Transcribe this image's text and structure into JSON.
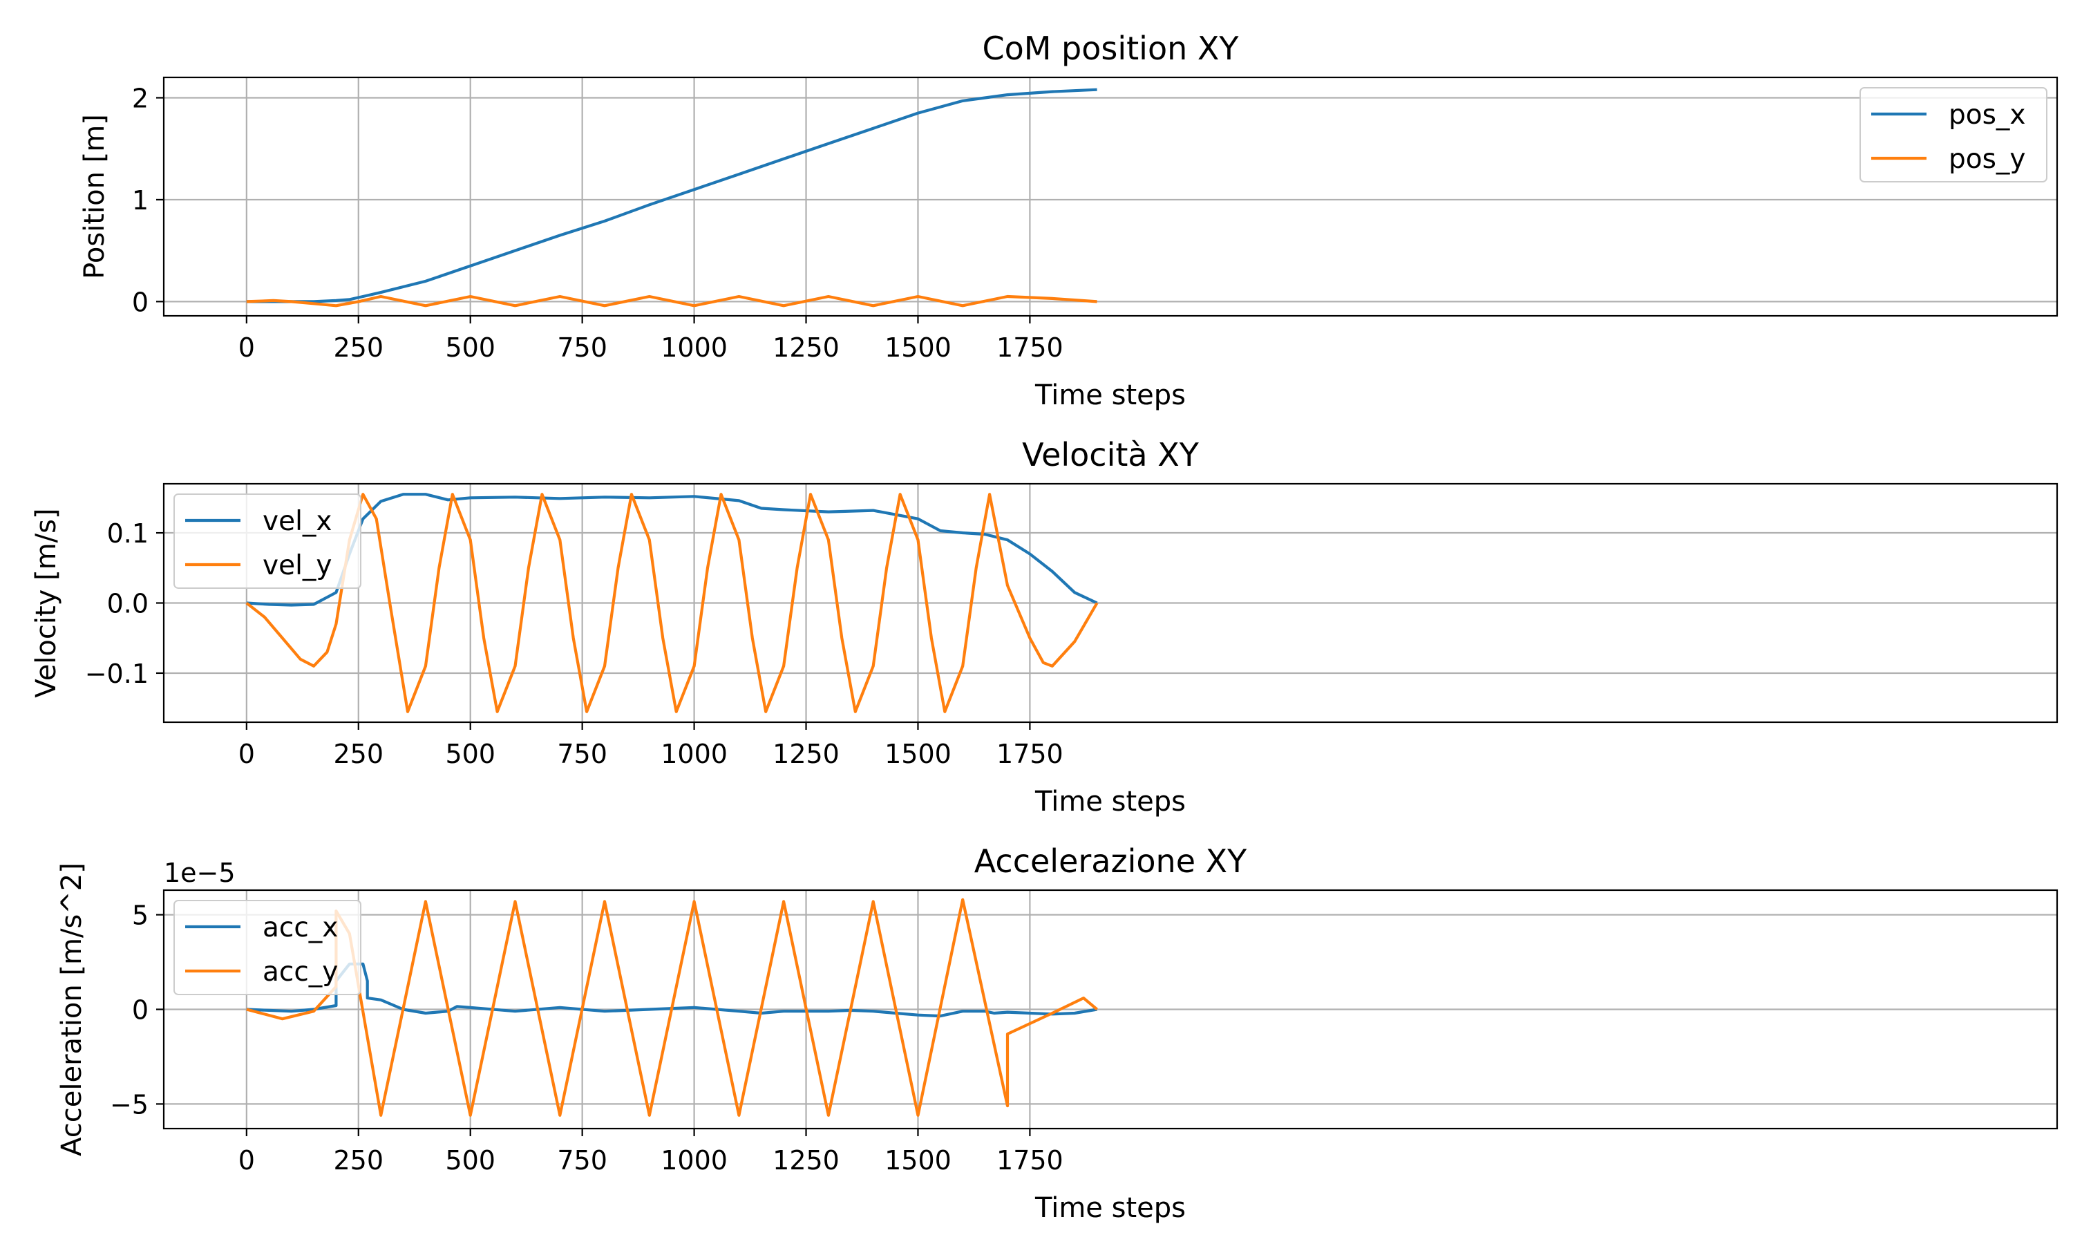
{
  "chart_data": [
    {
      "type": "line",
      "title": "CoM position XY",
      "xlabel": "Time steps",
      "ylabel": "Position [m]",
      "offset_text": "",
      "xlim": [
        -185,
        4045
      ],
      "ylim": [
        -0.14,
        2.2
      ],
      "xticks": [
        0,
        250,
        500,
        750,
        1000,
        1250,
        1500,
        1750
      ],
      "yticks": [
        0,
        1,
        2
      ],
      "ytick_labels": [
        "0",
        "1",
        "2"
      ],
      "grid": true,
      "legend_position": "top-right",
      "series": [
        {
          "name": "pos_x",
          "color": "#1f77b4",
          "points": [
            [
              0,
              0
            ],
            [
              100,
              0
            ],
            [
              150,
              0
            ],
            [
              200,
              0.01
            ],
            [
              230,
              0.02
            ],
            [
              260,
              0.05
            ],
            [
              300,
              0.09
            ],
            [
              400,
              0.2
            ],
            [
              500,
              0.35
            ],
            [
              600,
              0.5
            ],
            [
              700,
              0.65
            ],
            [
              800,
              0.79
            ],
            [
              900,
              0.95
            ],
            [
              1000,
              1.1
            ],
            [
              1100,
              1.25
            ],
            [
              1200,
              1.4
            ],
            [
              1300,
              1.55
            ],
            [
              1400,
              1.7
            ],
            [
              1500,
              1.85
            ],
            [
              1600,
              1.97
            ],
            [
              1650,
              2.0
            ],
            [
              1700,
              2.03
            ],
            [
              1800,
              2.06
            ],
            [
              1900,
              2.08
            ]
          ]
        },
        {
          "name": "pos_y",
          "color": "#ff7f0e",
          "points": [
            [
              0,
              0
            ],
            [
              60,
              0.01
            ],
            [
              100,
              0
            ],
            [
              150,
              -0.02
            ],
            [
              200,
              -0.04
            ],
            [
              250,
              0
            ],
            [
              300,
              0.05
            ],
            [
              400,
              -0.04
            ],
            [
              500,
              0.05
            ],
            [
              600,
              -0.04
            ],
            [
              700,
              0.05
            ],
            [
              800,
              -0.04
            ],
            [
              900,
              0.05
            ],
            [
              1000,
              -0.04
            ],
            [
              1100,
              0.05
            ],
            [
              1200,
              -0.04
            ],
            [
              1300,
              0.05
            ],
            [
              1400,
              -0.04
            ],
            [
              1500,
              0.05
            ],
            [
              1600,
              -0.04
            ],
            [
              1700,
              0.05
            ],
            [
              1800,
              0.03
            ],
            [
              1900,
              0
            ]
          ]
        }
      ]
    },
    {
      "type": "line",
      "title": "Velocità XY",
      "xlabel": "Time steps",
      "ylabel": "Velocity [m/s]",
      "offset_text": "",
      "xlim": [
        -185,
        4045
      ],
      "ylim": [
        -0.17,
        0.17
      ],
      "xticks": [
        0,
        250,
        500,
        750,
        1000,
        1250,
        1500,
        1750
      ],
      "yticks": [
        -0.1,
        0.0,
        0.1
      ],
      "ytick_labels": [
        "−0.1",
        "0.0",
        "0.1"
      ],
      "grid": true,
      "legend_position": "top-left",
      "series": [
        {
          "name": "vel_x",
          "color": "#1f77b4",
          "points": [
            [
              0,
              0
            ],
            [
              50,
              -0.002
            ],
            [
              100,
              -0.003
            ],
            [
              150,
              -0.002
            ],
            [
              200,
              0.015
            ],
            [
              230,
              0.07
            ],
            [
              260,
              0.12
            ],
            [
              300,
              0.145
            ],
            [
              350,
              0.155
            ],
            [
              400,
              0.155
            ],
            [
              450,
              0.147
            ],
            [
              500,
              0.15
            ],
            [
              600,
              0.151
            ],
            [
              700,
              0.149
            ],
            [
              800,
              0.151
            ],
            [
              900,
              0.15
            ],
            [
              1000,
              0.152
            ],
            [
              1100,
              0.146
            ],
            [
              1150,
              0.135
            ],
            [
              1200,
              0.133
            ],
            [
              1300,
              0.13
            ],
            [
              1400,
              0.132
            ],
            [
              1500,
              0.12
            ],
            [
              1550,
              0.103
            ],
            [
              1600,
              0.1
            ],
            [
              1650,
              0.098
            ],
            [
              1700,
              0.09
            ],
            [
              1750,
              0.07
            ],
            [
              1800,
              0.045
            ],
            [
              1850,
              0.015
            ],
            [
              1900,
              0
            ]
          ]
        },
        {
          "name": "vel_y",
          "color": "#ff7f0e",
          "points": [
            [
              0,
              0
            ],
            [
              40,
              -0.02
            ],
            [
              80,
              -0.05
            ],
            [
              120,
              -0.08
            ],
            [
              150,
              -0.09
            ],
            [
              180,
              -0.07
            ],
            [
              200,
              -0.03
            ],
            [
              230,
              0.09
            ],
            [
              260,
              0.155
            ],
            [
              290,
              0.12
            ],
            [
              320,
              0
            ],
            [
              360,
              -0.155
            ],
            [
              400,
              -0.09
            ],
            [
              430,
              0.05
            ],
            [
              460,
              0.155
            ],
            [
              500,
              0.09
            ],
            [
              530,
              -0.05
            ],
            [
              560,
              -0.155
            ],
            [
              600,
              -0.09
            ],
            [
              630,
              0.05
            ],
            [
              660,
              0.155
            ],
            [
              700,
              0.09
            ],
            [
              730,
              -0.05
            ],
            [
              760,
              -0.155
            ],
            [
              800,
              -0.09
            ],
            [
              830,
              0.05
            ],
            [
              860,
              0.155
            ],
            [
              900,
              0.09
            ],
            [
              930,
              -0.05
            ],
            [
              960,
              -0.155
            ],
            [
              1000,
              -0.09
            ],
            [
              1030,
              0.05
            ],
            [
              1060,
              0.155
            ],
            [
              1100,
              0.09
            ],
            [
              1130,
              -0.05
            ],
            [
              1160,
              -0.155
            ],
            [
              1200,
              -0.09
            ],
            [
              1230,
              0.05
            ],
            [
              1260,
              0.155
            ],
            [
              1300,
              0.09
            ],
            [
              1330,
              -0.05
            ],
            [
              1360,
              -0.155
            ],
            [
              1400,
              -0.09
            ],
            [
              1430,
              0.05
            ],
            [
              1460,
              0.155
            ],
            [
              1500,
              0.09
            ],
            [
              1530,
              -0.05
            ],
            [
              1560,
              -0.155
            ],
            [
              1600,
              -0.09
            ],
            [
              1630,
              0.05
            ],
            [
              1660,
              0.155
            ],
            [
              1700,
              0.025
            ],
            [
              1750,
              -0.05
            ],
            [
              1780,
              -0.085
            ],
            [
              1800,
              -0.09
            ],
            [
              1850,
              -0.055
            ],
            [
              1900,
              0
            ]
          ]
        }
      ]
    },
    {
      "type": "line",
      "title": "Accelerazione XY",
      "xlabel": "Time steps",
      "ylabel": "Acceleration [m/s^2]",
      "offset_text": "1e−5",
      "xlim": [
        -185,
        4045
      ],
      "ylim": [
        -6.3,
        6.3
      ],
      "xticks": [
        0,
        250,
        500,
        750,
        1000,
        1250,
        1500,
        1750
      ],
      "yticks": [
        -5,
        0,
        5
      ],
      "ytick_labels": [
        "−5",
        "0",
        "5"
      ],
      "grid": true,
      "legend_position": "top-left",
      "series": [
        {
          "name": "acc_x",
          "color": "#1f77b4",
          "points": [
            [
              0,
              0
            ],
            [
              50,
              -0.05
            ],
            [
              100,
              -0.1
            ],
            [
              150,
              0
            ],
            [
              200,
              0.2
            ],
            [
              200,
              1.5
            ],
            [
              230,
              2.4
            ],
            [
              260,
              2.4
            ],
            [
              270,
              1.5
            ],
            [
              270,
              0.6
            ],
            [
              300,
              0.5
            ],
            [
              350,
              0
            ],
            [
              400,
              -0.2
            ],
            [
              450,
              -0.1
            ],
            [
              470,
              0.15
            ],
            [
              500,
              0.1
            ],
            [
              600,
              -0.1
            ],
            [
              700,
              0.1
            ],
            [
              800,
              -0.1
            ],
            [
              900,
              0
            ],
            [
              1000,
              0.1
            ],
            [
              1100,
              -0.1
            ],
            [
              1150,
              -0.2
            ],
            [
              1200,
              -0.1
            ],
            [
              1300,
              -0.1
            ],
            [
              1350,
              -0.05
            ],
            [
              1400,
              -0.1
            ],
            [
              1450,
              -0.2
            ],
            [
              1500,
              -0.3
            ],
            [
              1550,
              -0.35
            ],
            [
              1600,
              -0.1
            ],
            [
              1650,
              -0.1
            ],
            [
              1670,
              -0.2
            ],
            [
              1700,
              -0.15
            ],
            [
              1800,
              -0.25
            ],
            [
              1850,
              -0.2
            ],
            [
              1900,
              0
            ]
          ]
        },
        {
          "name": "acc_y",
          "color": "#ff7f0e",
          "points": [
            [
              0,
              0
            ],
            [
              80,
              -0.5
            ],
            [
              150,
              -0.1
            ],
            [
              200,
              1.2
            ],
            [
              200,
              5.2
            ],
            [
              230,
              4
            ],
            [
              300,
              -5.6
            ],
            [
              400,
              5.7
            ],
            [
              500,
              -5.6
            ],
            [
              600,
              5.7
            ],
            [
              700,
              -5.6
            ],
            [
              800,
              5.7
            ],
            [
              900,
              -5.6
            ],
            [
              1000,
              5.7
            ],
            [
              1100,
              -5.6
            ],
            [
              1200,
              5.7
            ],
            [
              1300,
              -5.6
            ],
            [
              1400,
              5.7
            ],
            [
              1500,
              -5.6
            ],
            [
              1600,
              5.8
            ],
            [
              1700,
              -5.1
            ],
            [
              1700,
              -1.3
            ],
            [
              1800,
              -0.2
            ],
            [
              1870,
              0.6
            ],
            [
              1900,
              0
            ]
          ]
        }
      ]
    }
  ]
}
